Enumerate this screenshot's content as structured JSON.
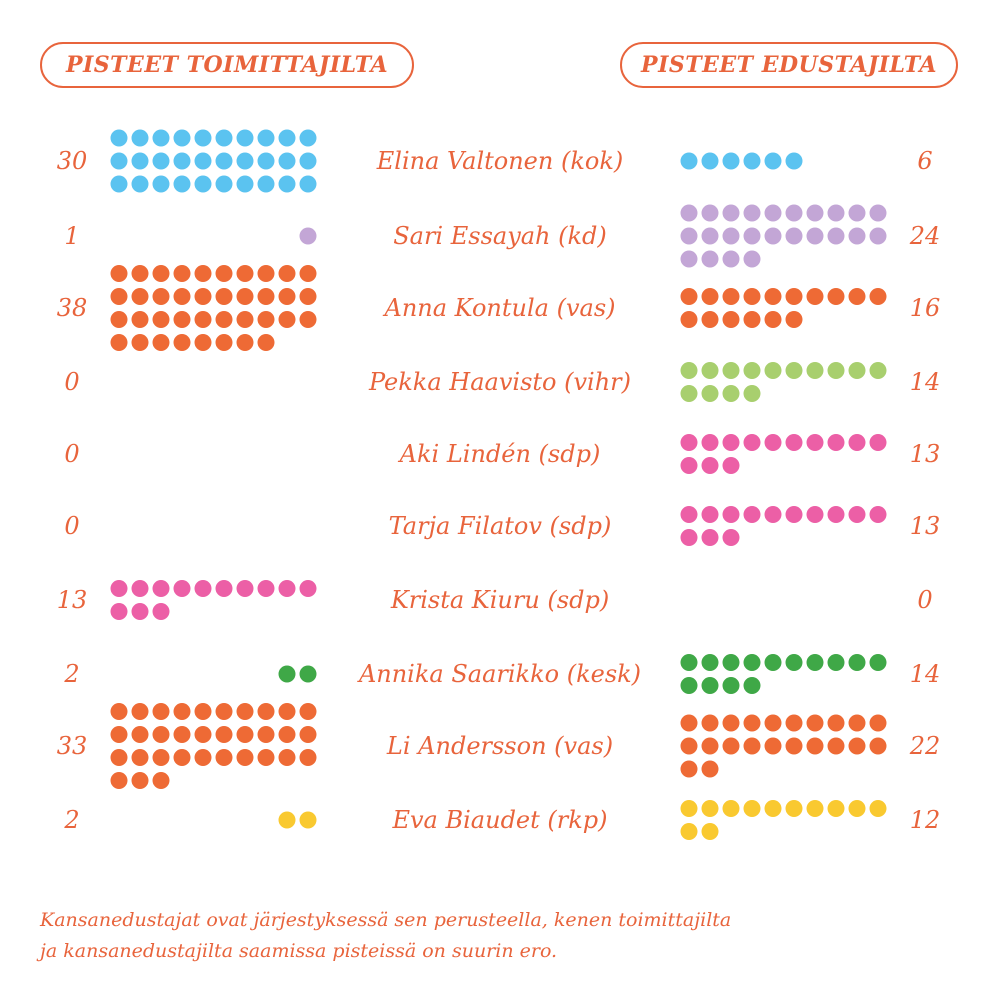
{
  "headers": {
    "left": "PISTEET TOIMITTAJILTA",
    "right": "PISTEET EDUSTAJILTA"
  },
  "footnote": {
    "line1": "Kansanedustajat ovat järjestyksessä sen perusteella, kenen toimittajilta",
    "line2": "ja kansanedustajilta saamissa pisteissä on suurin ero."
  },
  "chart_data": {
    "type": "dot-matrix",
    "series": [
      {
        "name": "PISTEET TOIMITTAJILTA"
      },
      {
        "name": "PISTEET EDUSTAJILTA"
      }
    ],
    "rows": [
      {
        "name": "Elina Valtonen (kok)",
        "journalists": 30,
        "journalists_label": "30",
        "mps": 6,
        "mps_label": "6",
        "color": "#5bc3f0"
      },
      {
        "name": "Sari Essayah (kd)",
        "journalists": 1,
        "journalists_label": "1",
        "mps": 24,
        "mps_label": "24",
        "color": "#c3a6d6"
      },
      {
        "name": "Anna Kontula (vas)",
        "journalists": 38,
        "journalists_label": "38",
        "mps": 16,
        "mps_label": "16",
        "color": "#ee6a35"
      },
      {
        "name": "Pekka Haavisto (vihr)",
        "journalists": 0,
        "journalists_label": "0",
        "mps": 14,
        "mps_label": "14",
        "color": "#a8cf6e"
      },
      {
        "name": "Aki Lindén (sdp)",
        "journalists": 0,
        "journalists_label": "0",
        "mps": 13,
        "mps_label": "13",
        "color": "#ec5fa6"
      },
      {
        "name": "Tarja Filatov (sdp)",
        "journalists": 0,
        "journalists_label": "0",
        "mps": 13,
        "mps_label": "13",
        "color": "#ec5fa6"
      },
      {
        "name": "Krista Kiuru (sdp)",
        "journalists": 13,
        "journalists_label": "13",
        "mps": 0,
        "mps_label": "0",
        "color": "#ec5fa6"
      },
      {
        "name": "Annika Saarikko (kesk)",
        "journalists": 2,
        "journalists_label": "2",
        "mps": 14,
        "mps_label": "14",
        "color": "#3fa847"
      },
      {
        "name": "Li Andersson (vas)",
        "journalists": 33,
        "journalists_label": "33",
        "mps": 22,
        "mps_label": "22",
        "color": "#ee6a35"
      },
      {
        "name": "Eva Biaudet (rkp)",
        "journalists": 2,
        "journalists_label": "2",
        "mps": 12,
        "mps_label": "12",
        "color": "#f9c930"
      }
    ]
  }
}
